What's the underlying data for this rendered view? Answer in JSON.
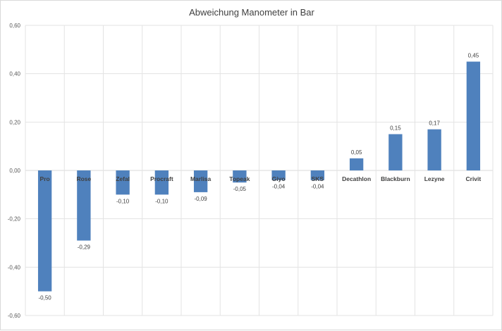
{
  "chart_data": {
    "type": "bar",
    "title": "Abweichung Manometer in Bar",
    "categories": [
      "Pro",
      "Rose",
      "Zefal",
      "Procraft",
      "Marlisa",
      "Topeak",
      "Giyo",
      "SKS",
      "Decathlon",
      "Blackburn",
      "Lezyne",
      "Crivit"
    ],
    "values": [
      -0.5,
      -0.29,
      -0.1,
      -0.1,
      -0.09,
      -0.05,
      -0.04,
      -0.04,
      0.05,
      0.15,
      0.17,
      0.45
    ],
    "data_labels": [
      "-0,50",
      "-0,29",
      "-0,10",
      "-0,10",
      "-0,09",
      "-0,05",
      "-0,04",
      "-0,04",
      "0,05",
      "0,15",
      "0,17",
      "0,45"
    ],
    "ylim": [
      -0.6,
      0.6
    ],
    "yticks": [
      0.6,
      0.4,
      0.2,
      0.0,
      -0.2,
      -0.4,
      -0.6
    ],
    "ytick_labels": [
      "0,60",
      "0,40",
      "0,20",
      "0,00",
      "-0,20",
      "-0,40",
      "-0,60"
    ],
    "xlabel": "",
    "ylabel": "",
    "grid": true,
    "legend": "none",
    "bar_color": "#4f81bd"
  }
}
